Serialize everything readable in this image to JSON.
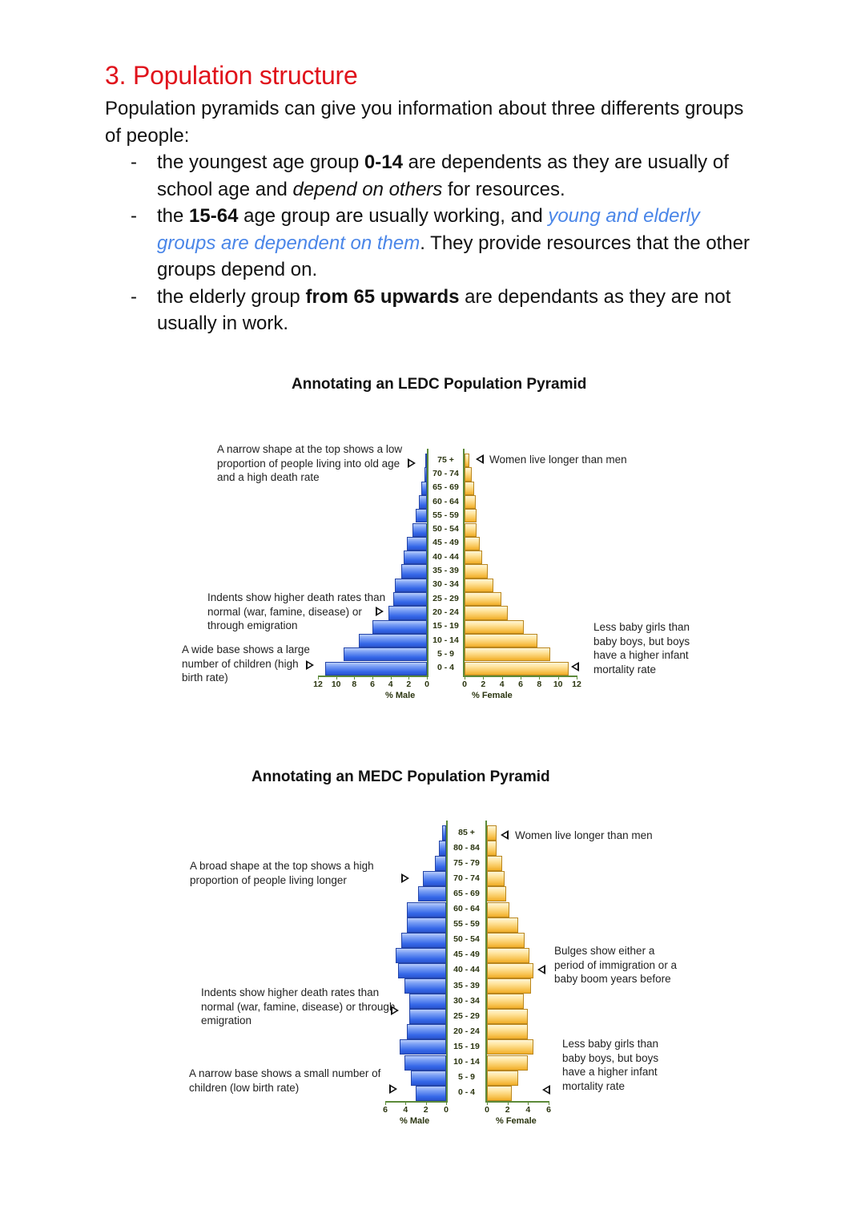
{
  "section": {
    "heading": "3. Population structure",
    "intro": "Population pyramids can give you information about three differents groups of people:",
    "bullets": [
      {
        "dash": "-",
        "p1": "the youngest age group ",
        "b1": "0-14",
        "p2": " are dependents as they are usually of school age and ",
        "i1": "depend on others",
        "p3": " for resources."
      },
      {
        "dash": "-",
        "p1": "the ",
        "b1": "15-64",
        "p2": " age group are usually working, and ",
        "blue1": "young and elderly groups are dependent on them",
        "p3": ". They provide resources that the other groups depend on."
      },
      {
        "dash": "-",
        "p1": "the elderly group ",
        "b1": "from 65 upwards",
        "p2": " are dependants as they are not usually in work."
      }
    ]
  },
  "chart_data": [
    {
      "type": "bar",
      "subtype": "population_pyramid",
      "title": "Annotating an LEDC Population Pyramid",
      "categories": [
        "75 +",
        "70 - 74",
        "65 - 69",
        "60 - 64",
        "55 - 59",
        "50 - 54",
        "45 - 49",
        "40 - 44",
        "35 - 39",
        "30 - 34",
        "25 - 29",
        "20 - 24",
        "15 - 19",
        "10 - 14",
        "5 - 9",
        "0 - 4"
      ],
      "series": [
        {
          "name": "% Male",
          "color": "#3567e8",
          "values": [
            0.2,
            0.3,
            0.6,
            0.9,
            1.2,
            1.6,
            2.2,
            2.6,
            2.8,
            3.5,
            3.7,
            4.2,
            6.0,
            7.5,
            9.2,
            11.2
          ]
        },
        {
          "name": "% Female",
          "color": "#f8c453",
          "values": [
            0.5,
            0.8,
            1.0,
            1.2,
            1.3,
            1.3,
            1.6,
            1.9,
            2.5,
            3.1,
            3.9,
            4.6,
            6.3,
            7.8,
            9.2,
            11.1
          ]
        }
      ],
      "xlabel_left": "% Male",
      "xlabel_right": "% Female",
      "ticks_left": [
        "12",
        "10",
        "8",
        "6",
        "4",
        "2",
        "0"
      ],
      "ticks_right": [
        "0",
        "2",
        "4",
        "6",
        "8",
        "10",
        "12"
      ],
      "xlim": [
        0,
        12
      ],
      "grid": false,
      "annotations": [
        {
          "side": "left",
          "target": "75 +",
          "text": "A narrow shape at the top shows a low proportion of people living into old age and a high death rate"
        },
        {
          "side": "left",
          "target": "20 - 24",
          "text": "Indents show higher death rates than normal (war, famine, disease) or through emigration"
        },
        {
          "side": "left",
          "target": "0 - 4",
          "text": "A wide base shows a large number of children (high birth rate)"
        },
        {
          "side": "right",
          "target": "75 +",
          "text": "Women live longer than men"
        },
        {
          "side": "right",
          "target": "0 - 4",
          "text": "Less baby girls than baby boys, but boys have a higher infant mortality rate"
        }
      ]
    },
    {
      "type": "bar",
      "subtype": "population_pyramid",
      "title": "Annotating an MEDC Population Pyramid",
      "categories": [
        "85 +",
        "80 - 84",
        "75 - 79",
        "70 - 74",
        "65 - 69",
        "60 - 64",
        "55 - 59",
        "50 - 54",
        "45 - 49",
        "40 - 44",
        "35 - 39",
        "30 - 34",
        "25 - 29",
        "20 - 24",
        "15 - 19",
        "10 - 14",
        "5 - 9",
        "0 - 4"
      ],
      "series": [
        {
          "name": "% Male",
          "color": "#3567e8",
          "values": [
            0.4,
            0.7,
            1.1,
            2.3,
            2.8,
            3.9,
            3.9,
            4.4,
            5.0,
            4.7,
            4.1,
            3.6,
            3.6,
            3.9,
            4.6,
            4.1,
            3.5,
            3.0
          ]
        },
        {
          "name": "% Female",
          "color": "#f8c453",
          "values": [
            0.9,
            0.9,
            1.5,
            1.7,
            1.9,
            2.2,
            3.0,
            3.7,
            4.1,
            4.5,
            4.3,
            3.6,
            4.0,
            4.0,
            4.5,
            4.0,
            3.0,
            2.4
          ]
        }
      ],
      "xlabel_left": "% Male",
      "xlabel_right": "% Female",
      "ticks_left": [
        "6",
        "4",
        "2",
        "0"
      ],
      "ticks_right": [
        "0",
        "2",
        "4",
        "6"
      ],
      "xlim": [
        0,
        6
      ],
      "grid": false,
      "annotations": [
        {
          "side": "left",
          "target": "70 - 74",
          "text": "A broad shape at the top shows a high proportion of people living longer"
        },
        {
          "side": "left",
          "target": "25 - 29",
          "text": "Indents show higher death rates than normal (war, famine, disease) or through emigration"
        },
        {
          "side": "left",
          "target": "0 - 4",
          "text": "A narrow base shows a small number of children (low birth rate)"
        },
        {
          "side": "right",
          "target": "85 +",
          "text": "Women live longer than men"
        },
        {
          "side": "right",
          "target": "40 - 44",
          "text": "Bulges show either a period of immigration or a baby boom years before"
        },
        {
          "side": "right",
          "target": "0 - 4",
          "text": "Less baby girls than baby boys, but boys have a higher infant mortality rate"
        }
      ]
    }
  ]
}
